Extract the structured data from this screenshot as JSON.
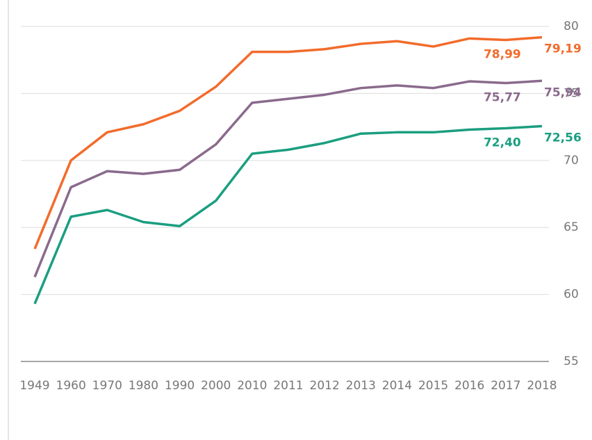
{
  "chart_data": {
    "type": "line",
    "categories": [
      "1949",
      "1960",
      "1970",
      "1980",
      "1990",
      "2000",
      "2010",
      "2011",
      "2012",
      "2013",
      "2014",
      "2015",
      "2016",
      "2017",
      "2018"
    ],
    "series": [
      {
        "color": "#f26b2b",
        "values": [
          63.4,
          70.0,
          72.1,
          72.7,
          73.7,
          75.5,
          78.1,
          78.1,
          78.3,
          78.7,
          78.9,
          78.5,
          79.1,
          78.99,
          79.19
        ],
        "value_labels": [
          null,
          null,
          null,
          null,
          null,
          null,
          null,
          null,
          null,
          null,
          null,
          null,
          null,
          "78,99",
          "79,19"
        ]
      },
      {
        "color": "#8a6a8c",
        "values": [
          61.3,
          68.0,
          69.2,
          69.0,
          69.3,
          71.2,
          74.3,
          74.6,
          74.9,
          75.4,
          75.6,
          75.4,
          75.9,
          75.77,
          75.94
        ],
        "value_labels": [
          null,
          null,
          null,
          null,
          null,
          null,
          null,
          null,
          null,
          null,
          null,
          null,
          null,
          "75,77",
          "75,94"
        ]
      },
      {
        "color": "#1a9e80",
        "values": [
          59.3,
          65.8,
          66.3,
          65.4,
          65.1,
          67.0,
          70.5,
          70.8,
          71.3,
          72.0,
          72.1,
          72.1,
          72.3,
          72.4,
          72.56
        ],
        "value_labels": [
          null,
          null,
          null,
          null,
          null,
          null,
          null,
          null,
          null,
          null,
          null,
          null,
          null,
          "72,40",
          "72,56"
        ]
      }
    ],
    "ylim": [
      55,
      80
    ],
    "yticks": [
      55,
      60,
      65,
      70,
      75,
      80
    ],
    "grid": true
  }
}
